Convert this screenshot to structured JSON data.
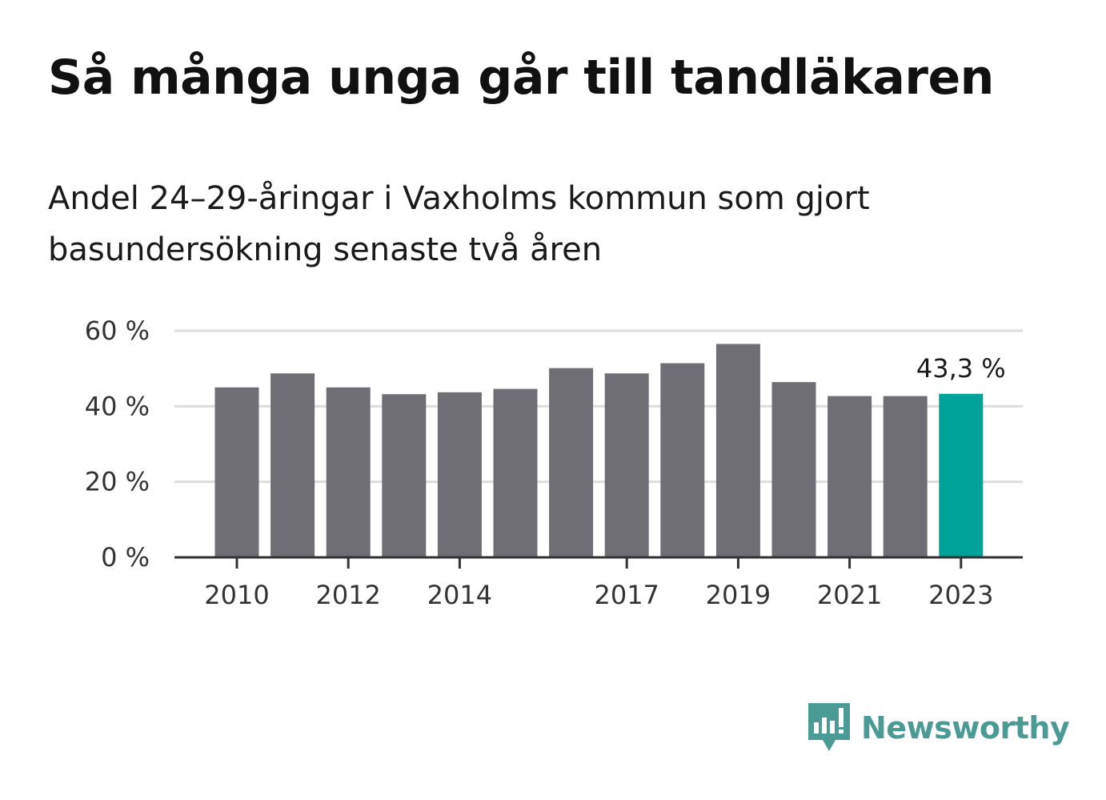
{
  "title": "Så många unga går till tandläkaren",
  "subtitle": "Andel 24–29-åringar i Vaxholms kommun som gjort basundersökning senaste två åren",
  "brand": {
    "name": "Newsworthy",
    "icon": "newsworthy-logo-icon",
    "color": "#4a9a95"
  },
  "chart_data": {
    "type": "bar",
    "categories": [
      "2010",
      "2011",
      "2012",
      "2013",
      "2014",
      "2015",
      "2016",
      "2017",
      "2018",
      "2019",
      "2020",
      "2021",
      "2022",
      "2023"
    ],
    "x_tick_labels": [
      "2010",
      "",
      "2012",
      "",
      "2014",
      "",
      "",
      "2017",
      "",
      "2019",
      "",
      "2021",
      "",
      "2023"
    ],
    "values": [
      45.0,
      48.7,
      45.0,
      43.2,
      43.7,
      44.6,
      50.1,
      48.7,
      51.4,
      56.5,
      46.4,
      42.7,
      42.7,
      43.3
    ],
    "ylim": [
      0,
      60
    ],
    "yticks": [
      0,
      20,
      40,
      60
    ],
    "ytick_labels": [
      "0 %",
      "20 %",
      "40 %",
      "60 %"
    ],
    "grid": true,
    "colors": {
      "default": "#6f6e75",
      "highlight": "#00a39a",
      "grid": "#dddddd",
      "axis": "#333333"
    },
    "highlight_index": 13,
    "annotations": [
      {
        "category": "2023",
        "text": "43,3 %"
      }
    ],
    "title": "Så många unga går till tandläkaren",
    "xlabel": "",
    "ylabel": ""
  }
}
